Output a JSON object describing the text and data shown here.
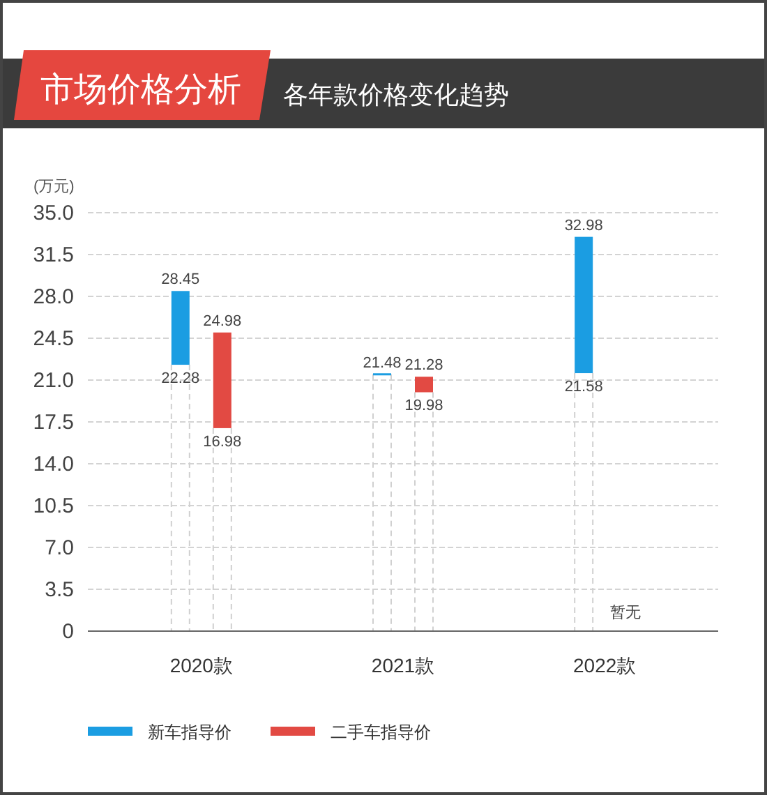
{
  "chart_data": {
    "type": "bar",
    "title": "市场价格分析",
    "subtitle": "各年款价格变化趋势",
    "ylabel": "(万元)",
    "categories": [
      "2020款",
      "2021款",
      "2022款"
    ],
    "series": [
      {
        "name": "新车指导价",
        "color": "#1b9de2",
        "base": [
          22.28,
          21.48,
          21.58
        ],
        "values": [
          6.17,
          0,
          11.4
        ]
      },
      {
        "name": "二手车指导价",
        "color": "#e24a43",
        "base": [
          16.98,
          19.98,
          null
        ],
        "values": [
          8,
          1.3,
          null
        ]
      }
    ],
    "ylim": [
      0,
      35
    ],
    "yticks": [
      0,
      3.5,
      {
        "value": 7,
        "label": "7.0"
      },
      10.5,
      {
        "value": 14,
        "label": "14.0"
      },
      17.5,
      {
        "value": 21,
        "label": "21.0"
      },
      24.5,
      {
        "value": 28,
        "label": "28.0"
      },
      31.5,
      {
        "value": 35,
        "label": "35.0"
      }
    ],
    "grid": "y",
    "legend": "bottom",
    "annotations": [
      "28.45",
      "22.28",
      "24.98",
      "16.98",
      "21.48",
      "21.28",
      "19.98",
      "32.98",
      "21.58",
      "暂无"
    ]
  }
}
